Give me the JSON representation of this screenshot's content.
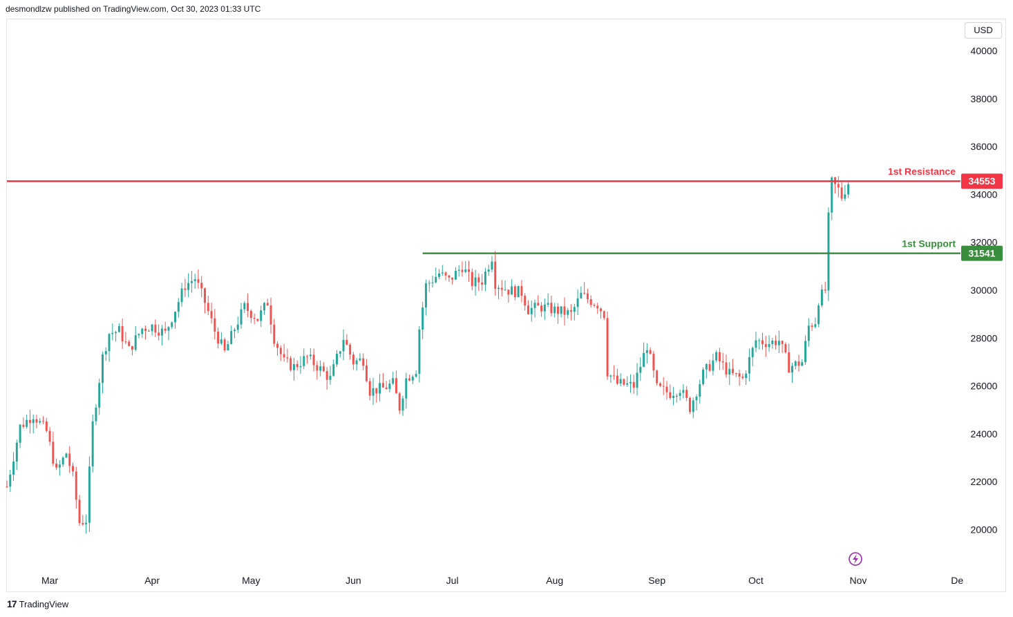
{
  "header": {
    "text": "desmondlzw published on TradingView.com, Oct 30, 2023 01:33 UTC"
  },
  "currency_label": "USD",
  "footer": {
    "logo_glyph": "17",
    "brand": "TradingView"
  },
  "colors": {
    "up": "#26a69a",
    "down": "#ef5350",
    "resistance": "#f23645",
    "support": "#388e3c",
    "flash": "#9c27b0"
  },
  "chart_data": {
    "type": "candlestick",
    "title": "",
    "xlabel": "",
    "ylabel": "",
    "ylim": [
      19000,
      41000
    ],
    "y_ticks": [
      20000,
      22000,
      24000,
      26000,
      28000,
      30000,
      32000,
      34000,
      36000,
      38000,
      40000
    ],
    "x_ticks": [
      "Mar",
      "Apr",
      "May",
      "Jun",
      "Jul",
      "Aug",
      "Sep",
      "Oct",
      "Nov",
      "De"
    ],
    "x_range": [
      "2023-02-16",
      "2023-12-02"
    ],
    "x_tick_dates": [
      "2023-03-01",
      "2023-04-01",
      "2023-05-01",
      "2023-06-01",
      "2023-07-01",
      "2023-08-01",
      "2023-09-01",
      "2023-10-01",
      "2023-11-01",
      "2023-12-01"
    ],
    "price_path": [
      [
        "2023-02-16",
        21800
      ],
      [
        "2023-02-20",
        24300
      ],
      [
        "2023-02-24",
        24800
      ],
      [
        "2023-02-28",
        24100
      ],
      [
        "2023-03-03",
        22400
      ],
      [
        "2023-03-06",
        23200
      ],
      [
        "2023-03-08",
        22200
      ],
      [
        "2023-03-10",
        20300
      ],
      [
        "2023-03-12",
        20400
      ],
      [
        "2023-03-14",
        24400
      ],
      [
        "2023-03-17",
        27200
      ],
      [
        "2023-03-19",
        28200
      ],
      [
        "2023-03-22",
        28300
      ],
      [
        "2023-03-25",
        27500
      ],
      [
        "2023-03-29",
        28400
      ],
      [
        "2023-04-01",
        28500
      ],
      [
        "2023-04-05",
        28200
      ],
      [
        "2023-04-11",
        30200
      ],
      [
        "2023-04-14",
        30500
      ],
      [
        "2023-04-17",
        29500
      ],
      [
        "2023-04-20",
        28300
      ],
      [
        "2023-04-23",
        27400
      ],
      [
        "2023-04-26",
        28400
      ],
      [
        "2023-04-29",
        29300
      ],
      [
        "2023-05-03",
        28800
      ],
      [
        "2023-05-06",
        29500
      ],
      [
        "2023-05-08",
        28000
      ],
      [
        "2023-05-11",
        27000
      ],
      [
        "2023-05-14",
        26800
      ],
      [
        "2023-05-18",
        27200
      ],
      [
        "2023-05-22",
        26700
      ],
      [
        "2023-05-25",
        26300
      ],
      [
        "2023-05-29",
        28000
      ],
      [
        "2023-06-01",
        27000
      ],
      [
        "2023-06-04",
        27100
      ],
      [
        "2023-06-06",
        25800
      ],
      [
        "2023-06-10",
        25900
      ],
      [
        "2023-06-13",
        26100
      ],
      [
        "2023-06-15",
        25100
      ],
      [
        "2023-06-17",
        26300
      ],
      [
        "2023-06-20",
        26700
      ],
      [
        "2023-06-21",
        28400
      ],
      [
        "2023-06-23",
        30200
      ],
      [
        "2023-06-27",
        30700
      ],
      [
        "2023-06-30",
        30400
      ],
      [
        "2023-07-04",
        31000
      ],
      [
        "2023-07-07",
        30300
      ],
      [
        "2023-07-10",
        30400
      ],
      [
        "2023-07-13",
        31400
      ],
      [
        "2023-07-14",
        30300
      ],
      [
        "2023-07-18",
        30000
      ],
      [
        "2023-07-22",
        29900
      ],
      [
        "2023-07-24",
        29200
      ],
      [
        "2023-07-28",
        29300
      ],
      [
        "2023-07-31",
        29200
      ],
      [
        "2023-08-03",
        29100
      ],
      [
        "2023-08-06",
        29000
      ],
      [
        "2023-08-09",
        29800
      ],
      [
        "2023-08-14",
        29400
      ],
      [
        "2023-08-16",
        29000
      ],
      [
        "2023-08-17",
        26600
      ],
      [
        "2023-08-20",
        26100
      ],
      [
        "2023-08-25",
        26000
      ],
      [
        "2023-08-29",
        27700
      ],
      [
        "2023-09-01",
        25900
      ],
      [
        "2023-09-05",
        25700
      ],
      [
        "2023-09-08",
        25900
      ],
      [
        "2023-09-11",
        25100
      ],
      [
        "2023-09-15",
        26500
      ],
      [
        "2023-09-19",
        27200
      ],
      [
        "2023-09-23",
        26500
      ],
      [
        "2023-09-27",
        26300
      ],
      [
        "2023-10-01",
        27900
      ],
      [
        "2023-10-05",
        27800
      ],
      [
        "2023-10-08",
        27900
      ],
      [
        "2023-10-11",
        26800
      ],
      [
        "2023-10-15",
        27000
      ],
      [
        "2023-10-17",
        28500
      ],
      [
        "2023-10-19",
        28700
      ],
      [
        "2023-10-20",
        29600
      ],
      [
        "2023-10-22",
        30000
      ],
      [
        "2023-10-23",
        33000
      ],
      [
        "2023-10-24",
        34500
      ],
      [
        "2023-10-26",
        34200
      ],
      [
        "2023-10-27",
        33900
      ],
      [
        "2023-10-29",
        34500
      ]
    ],
    "levels": [
      {
        "name": "1st Resistance",
        "value": 34553,
        "badge": "34553",
        "start": "2023-02-16"
      },
      {
        "name": "1st Support",
        "value": 31541,
        "badge": "31541",
        "start": "2023-06-22"
      }
    ]
  }
}
